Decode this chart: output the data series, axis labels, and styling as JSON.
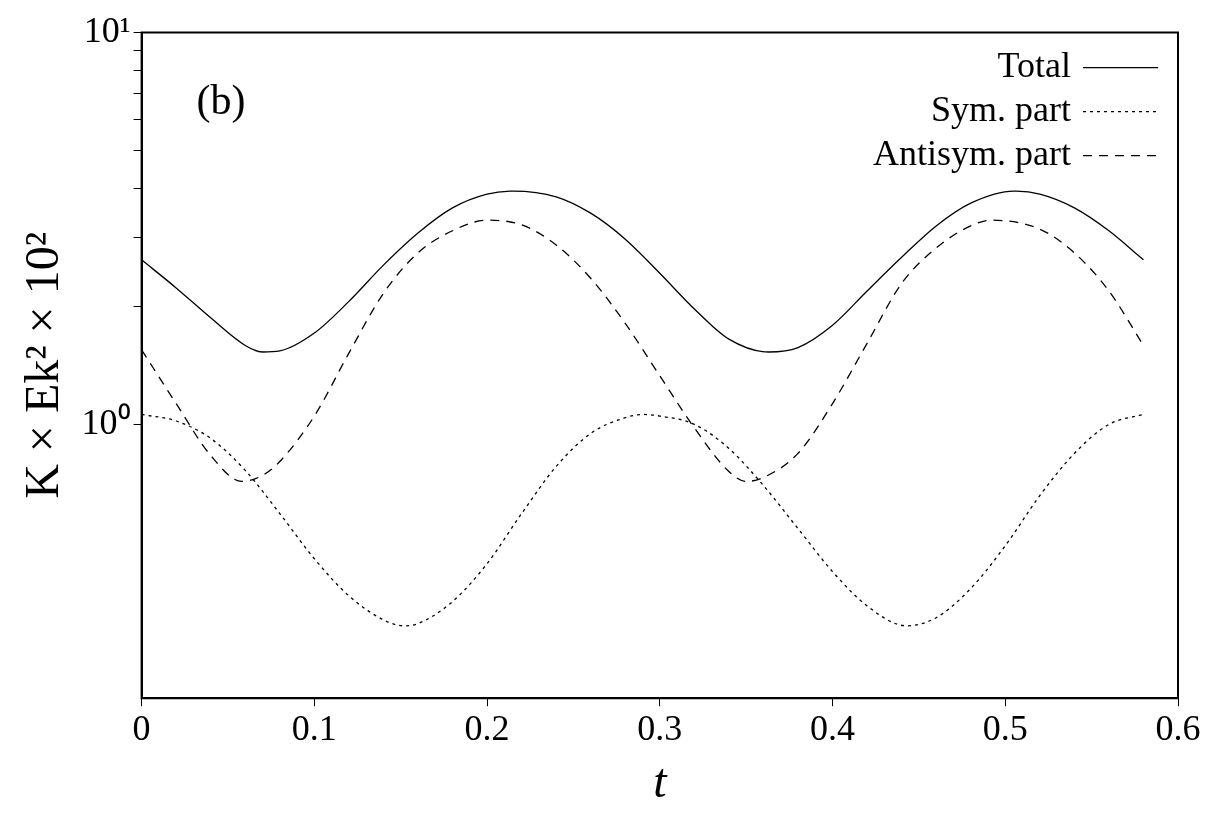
{
  "chart_data": {
    "type": "line",
    "xlabel": "t",
    "ylabel": "K × Ek² × 10²",
    "log": "y",
    "xlim": [
      0,
      0.6
    ],
    "xticks": [
      0,
      0.1,
      0.2,
      0.3,
      0.4,
      0.5,
      0.6
    ],
    "ylim": [
      0.2,
      10
    ],
    "yticks": [
      {
        "value": 1,
        "label": "10⁰"
      },
      {
        "value": 2,
        "label": null
      },
      {
        "value": 3,
        "label": null
      },
      {
        "value": 4,
        "label": null
      },
      {
        "value": 5,
        "label": null
      },
      {
        "value": 6,
        "label": null
      },
      {
        "value": 7,
        "label": null
      },
      {
        "value": 8,
        "label": null
      },
      {
        "value": 9,
        "label": null
      },
      {
        "value": 10,
        "label": "10¹"
      }
    ],
    "grid": false,
    "legend": "top right",
    "marker": "none",
    "annotations": [
      "(b)"
    ],
    "series": [
      {
        "name": "Total",
        "color": "#000000",
        "line_style": "solid",
        "x": [
          0,
          0.02,
          0.04,
          0.06,
          0.07,
          0.08,
          0.1,
          0.12,
          0.14,
          0.16,
          0.18,
          0.2,
          0.215,
          0.24,
          0.26,
          0.28,
          0.3,
          0.32,
          0.34,
          0.363,
          0.38,
          0.4,
          0.42,
          0.44,
          0.46,
          0.48,
          0.505,
          0.52,
          0.54,
          0.56,
          0.58
        ],
        "values": [
          2.63,
          2.23,
          1.87,
          1.59,
          1.53,
          1.54,
          1.71,
          2.06,
          2.55,
          3.08,
          3.57,
          3.87,
          3.94,
          3.81,
          3.46,
          2.97,
          2.43,
          1.97,
          1.65,
          1.53,
          1.57,
          1.79,
          2.19,
          2.67,
          3.21,
          3.67,
          3.94,
          3.87,
          3.57,
          3.12,
          2.63
        ]
      },
      {
        "name": "Sym. part",
        "color": "#000000",
        "line_style": "dotted",
        "x": [
          0,
          0.02,
          0.04,
          0.06,
          0.08,
          0.1,
          0.12,
          0.14,
          0.152,
          0.16,
          0.18,
          0.2,
          0.22,
          0.24,
          0.26,
          0.28,
          0.29,
          0.3,
          0.32,
          0.34,
          0.36,
          0.38,
          0.4,
          0.42,
          0.443,
          0.46,
          0.48,
          0.5,
          0.52,
          0.54,
          0.56,
          0.58
        ],
        "values": [
          1.06,
          1.02,
          0.921,
          0.763,
          0.592,
          0.454,
          0.365,
          0.317,
          0.306,
          0.31,
          0.353,
          0.441,
          0.592,
          0.781,
          0.948,
          1.04,
          1.06,
          1.05,
          1.0,
          0.868,
          0.698,
          0.542,
          0.421,
          0.344,
          0.306,
          0.321,
          0.381,
          0.49,
          0.658,
          0.843,
          1.0,
          1.06
        ]
      },
      {
        "name": "Antisym. part",
        "color": "#000000",
        "line_style": "dashed",
        "x": [
          0,
          0.02,
          0.04,
          0.058,
          0.07,
          0.08,
          0.1,
          0.12,
          0.14,
          0.16,
          0.18,
          0.2,
          0.22,
          0.24,
          0.26,
          0.28,
          0.3,
          0.32,
          0.34,
          0.35,
          0.36,
          0.38,
          0.4,
          0.42,
          0.44,
          0.46,
          0.48,
          0.492,
          0.52,
          0.54,
          0.56,
          0.58
        ],
        "values": [
          1.55,
          1.13,
          0.833,
          0.715,
          0.741,
          0.804,
          1.05,
          1.52,
          2.16,
          2.74,
          3.12,
          3.32,
          3.23,
          2.87,
          2.36,
          1.81,
          1.33,
          0.98,
          0.758,
          0.715,
          0.732,
          0.843,
          1.13,
          1.61,
          2.29,
          2.82,
          3.21,
          3.32,
          3.15,
          2.74,
          2.19,
          1.59
        ]
      }
    ]
  }
}
